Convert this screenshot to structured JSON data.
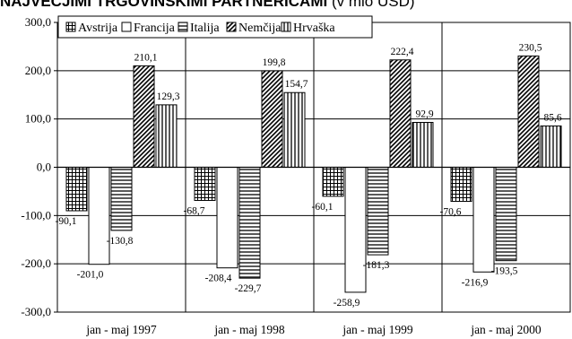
{
  "title_main": "NAJVEČJIMI TRGOVINSKIMI PARTNERICAMI",
  "title_unit": "(v mio USD)",
  "chart_data": {
    "type": "bar",
    "categories": [
      "jan - maj 1997",
      "jan - maj 1998",
      "jan - maj 1999",
      "jan - maj 2000"
    ],
    "series": [
      {
        "name": "Avstrija",
        "values": [
          -90.1,
          -68.7,
          -60.1,
          -70.6
        ],
        "labels": [
          "-90,1",
          "-68,7",
          "-60,1",
          "-70,6"
        ],
        "pattern": "grid"
      },
      {
        "name": "Francija",
        "values": [
          -201.0,
          -208.4,
          -258.9,
          -216.9
        ],
        "labels": [
          "-201,0",
          "-208,4",
          "-258,9",
          "-216,9"
        ],
        "pattern": "empty"
      },
      {
        "name": "Italija",
        "values": [
          -130.8,
          -229.7,
          -181.3,
          -193.5
        ],
        "labels": [
          "-130,8",
          "-229,7",
          "-181,3",
          "-193,5"
        ],
        "pattern": "horizontal"
      },
      {
        "name": "Nemčija",
        "values": [
          210.1,
          199.8,
          222.4,
          230.5
        ],
        "labels": [
          "210,1",
          "199,8",
          "222,4",
          "230,5"
        ],
        "pattern": "diagonal"
      },
      {
        "name": "Hrvaška",
        "values": [
          129.3,
          154.7,
          92.9,
          85.6
        ],
        "labels": [
          "129,3",
          "154,7",
          "92,9",
          "85,6"
        ],
        "pattern": "vertical"
      }
    ],
    "ylim": [
      -300,
      300
    ],
    "yticks": [
      "300,0",
      "200,0",
      "100,0",
      "0,0",
      "-100,0",
      "-200,0",
      "-300,0"
    ],
    "grid": true,
    "legend_position": "top-left"
  }
}
